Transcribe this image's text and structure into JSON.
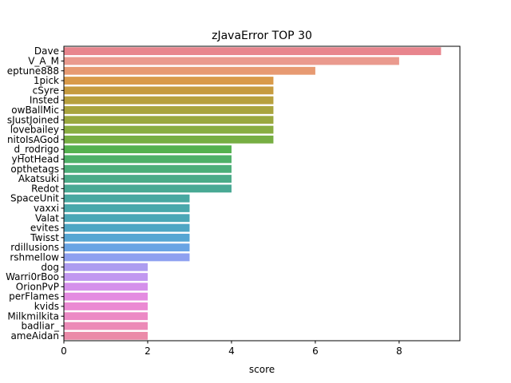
{
  "chart_data": {
    "type": "bar",
    "orientation": "horizontal",
    "title": "zJavaError TOP 30",
    "xlabel": "score",
    "ylabel": "",
    "xlim": [
      0,
      9.45
    ],
    "xticks": [
      0,
      2,
      4,
      6,
      8
    ],
    "grid": false,
    "categories": [
      "Dave",
      "V_A_M",
      "eptune888",
      "1pick",
      "cSyre",
      "Insted",
      "owBallMic",
      "sJustJoined",
      "lovebailey",
      "nitoIsAGod",
      "d_rodrigo",
      "yHotHead",
      "opthetags",
      "Akatsuki",
      "Redot",
      "SpaceUnit",
      "vaxxi",
      "Valat",
      "evites",
      "Twisst",
      "rdillusions",
      "rshmellow",
      "dog",
      "Warri0rBoo",
      "OrionPvP",
      "perFlames",
      "kvids",
      "Milkmilkita",
      "badliar_",
      "ameAidan"
    ],
    "values": [
      9,
      8,
      6,
      5,
      5,
      5,
      5,
      5,
      5,
      5,
      4,
      4,
      4,
      4,
      4,
      3,
      3,
      3,
      3,
      3,
      3,
      3,
      2,
      2,
      2,
      2,
      2,
      2,
      2,
      2
    ],
    "colors": [
      "#e8858d",
      "#ea9a8e",
      "#e79a72",
      "#d99a49",
      "#c69b3f",
      "#b7a03e",
      "#a9a43e",
      "#9aa83f",
      "#89ad41",
      "#77ae43",
      "#54b14f",
      "#4eb068",
      "#4cae79",
      "#4bab88",
      "#49a994",
      "#48a8a1",
      "#49a8ab",
      "#4ba7b6",
      "#4ea6c4",
      "#56a6d3",
      "#69a4e4",
      "#8ea0f0",
      "#ad9cf0",
      "#c198f0",
      "#d590eb",
      "#e48be1",
      "#eb8ad3",
      "#ec8ac5",
      "#ec8ab7",
      "#eb8aa8"
    ]
  }
}
